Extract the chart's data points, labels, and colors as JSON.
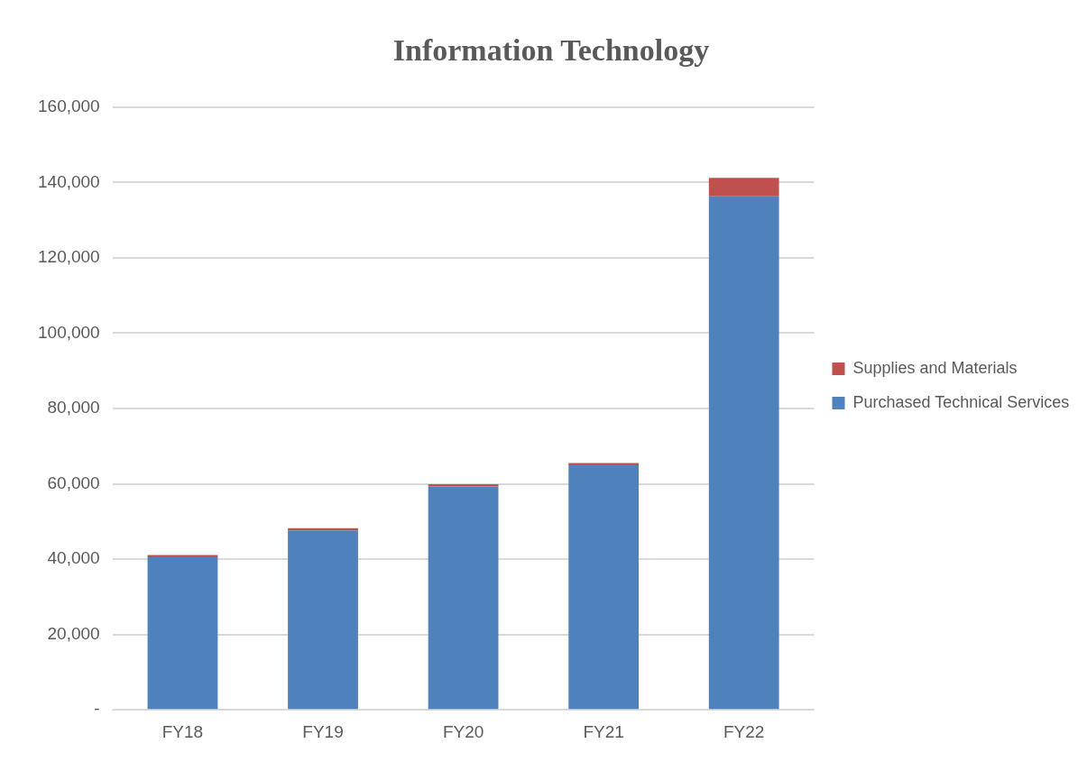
{
  "chart_data": {
    "type": "bar",
    "title": "Information Technology",
    "categories": [
      "FY18",
      "FY19",
      "FY20",
      "FY21",
      "FY22"
    ],
    "stacked": true,
    "series": [
      {
        "name": "Purchased Technical Services",
        "color": "#4f81bd",
        "values": [
          40500,
          47600,
          59300,
          64900,
          136300
        ]
      },
      {
        "name": "Supplies and Materials",
        "color": "#c0504d",
        "values": [
          600,
          600,
          600,
          600,
          4900
        ]
      }
    ],
    "ylim": [
      0,
      160000
    ],
    "yticks": [
      {
        "value": 0,
        "label": "-"
      },
      {
        "value": 20000,
        "label": "20,000"
      },
      {
        "value": 40000,
        "label": "40,000"
      },
      {
        "value": 60000,
        "label": "60,000"
      },
      {
        "value": 80000,
        "label": "80,000"
      },
      {
        "value": 100000,
        "label": "100,000"
      },
      {
        "value": 120000,
        "label": "120,000"
      },
      {
        "value": 140000,
        "label": "140,000"
      },
      {
        "value": 160000,
        "label": "160,000"
      }
    ],
    "grid": "y",
    "legend": "right"
  }
}
